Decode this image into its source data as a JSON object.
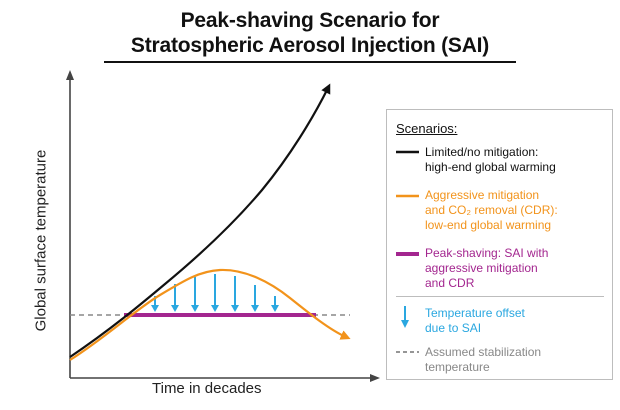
{
  "title": {
    "line1": "Peak-shaving Scenario for",
    "line2": "Stratospheric Aerosol Injection (SAI)"
  },
  "axes": {
    "ylabel": "Global surface temperature",
    "xlabel": "Time in decades"
  },
  "legend": {
    "heading": "Scenarios:",
    "items": [
      {
        "label": "Limited/no mitigation:\nhigh-end global warming",
        "color": "#111111"
      },
      {
        "label": "Aggressive mitigation\nand CO₂ removal (CDR):\nlow-end global warming",
        "color": "#f2931b"
      },
      {
        "label": "Peak-shaving: SAI with\naggressive mitigation\nand CDR",
        "color": "#a3268f"
      },
      {
        "label": "Temperature offset\ndue to SAI",
        "color": "#2aa7e0"
      },
      {
        "label": "Assumed stabilization\ntemperature",
        "color": "#888888"
      }
    ]
  },
  "colors": {
    "no_mitigation": "#111111",
    "aggressive": "#f2931b",
    "peak_shaving": "#a3268f",
    "offset": "#2aa7e0",
    "stabilization": "#888888"
  }
}
